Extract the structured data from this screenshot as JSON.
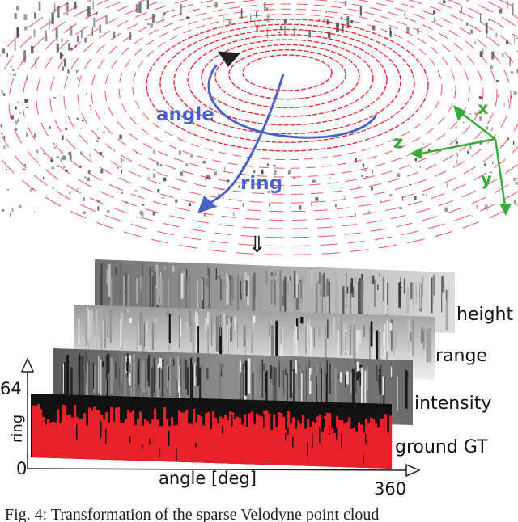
{
  "top_panel": {
    "label_angle": "angle",
    "label_ring": "ring",
    "axis_x": "x",
    "axis_y": "y",
    "axis_z": "z",
    "colors": {
      "blue": "#4a63c8",
      "green": "#3aab3a",
      "ground": "#e8202a"
    }
  },
  "arrow_symbol": "⇓",
  "layers": {
    "height": "height",
    "range": "range",
    "intensity": "intensity",
    "ground": "ground GT"
  },
  "axes": {
    "y_top": "64",
    "y_bottom": "0",
    "y_label": "ring",
    "x_label": "angle [deg]",
    "x_right": "360"
  },
  "caption": "Fig. 4: Transformation of the sparse Velodyne point cloud"
}
